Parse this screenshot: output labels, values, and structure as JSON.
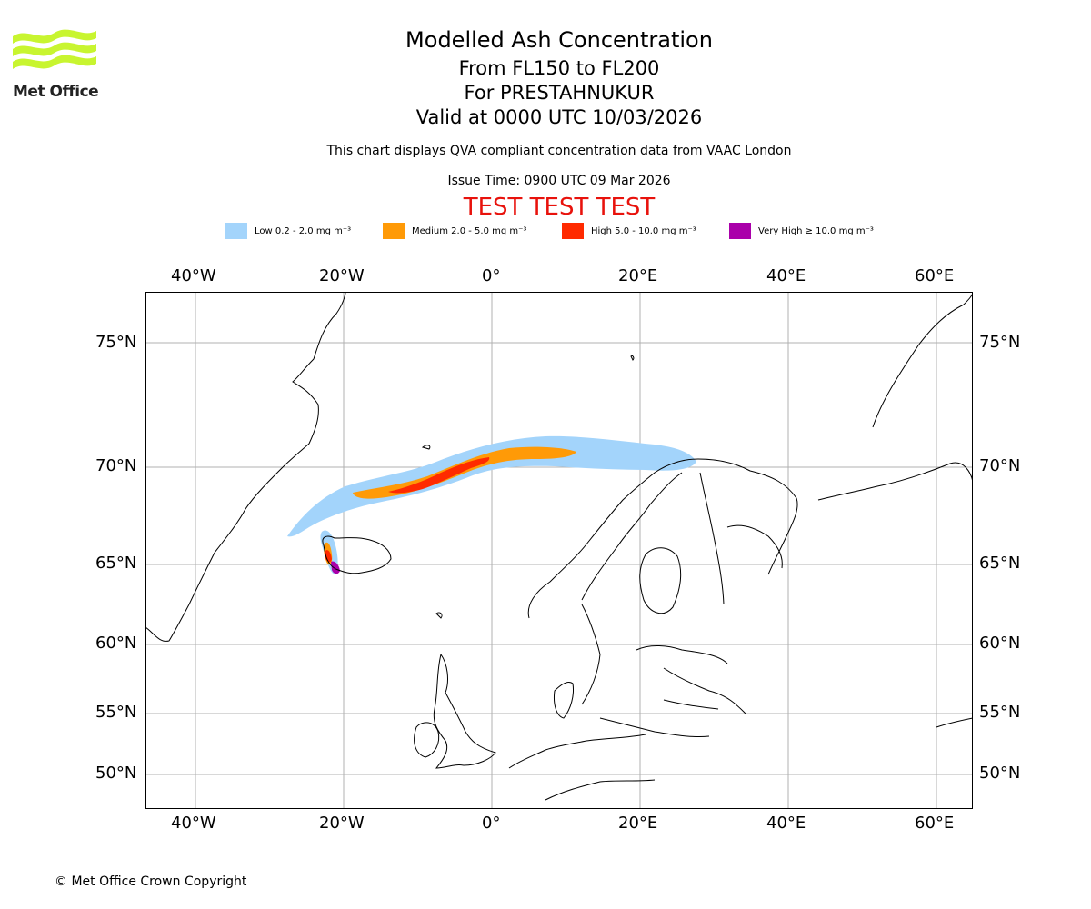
{
  "header": {
    "title": "Modelled Ash Concentration",
    "level_range": "From FL150 to FL200",
    "volcano": "For PRESTAHNUKUR",
    "valid_time": "Valid at 0000 UTC 10/03/2026",
    "note": "This chart displays QVA compliant concentration data from VAAC London",
    "issue_time": "Issue Time: 0900 UTC 09 Mar 2026",
    "banner": "TEST TEST TEST"
  },
  "logo": {
    "text": "Met Office",
    "color": "#c8f530"
  },
  "legend": [
    {
      "label": "Low 0.2 - 2.0 mg m⁻³",
      "color": "#a3d4fb"
    },
    {
      "label": "Medium 2.0 - 5.0 mg m⁻³",
      "color": "#ff9a07"
    },
    {
      "label": "High 5.0 - 10.0 mg m⁻³",
      "color": "#ff2a00"
    },
    {
      "label": "Very High ≥ 10.0 mg m⁻³",
      "color": "#aa00aa"
    }
  ],
  "map": {
    "lon_ticks": [
      "40°W",
      "20°W",
      "0°",
      "20°E",
      "40°E",
      "60°E"
    ],
    "lat_ticks": [
      "75°N",
      "70°N",
      "65°N",
      "60°N",
      "55°N",
      "50°N"
    ]
  },
  "footer": {
    "copyright": "© Met Office Crown Copyright"
  }
}
